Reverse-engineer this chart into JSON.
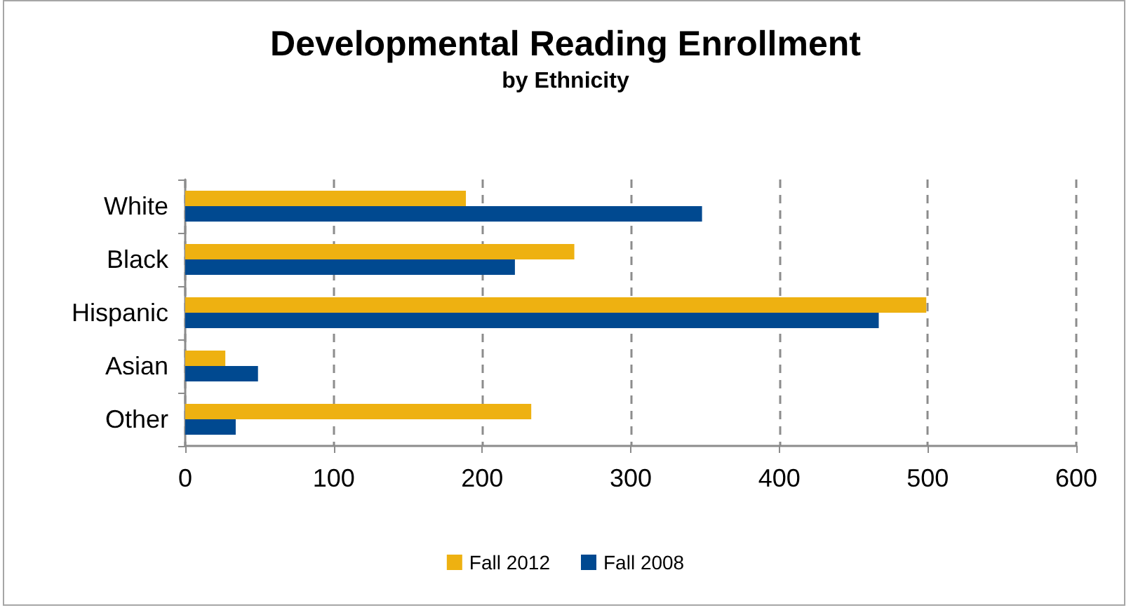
{
  "chart_data": {
    "type": "bar",
    "orientation": "horizontal",
    "title": "Developmental Reading Enrollment",
    "subtitle": "by Ethnicity",
    "categories": [
      "White",
      "Black",
      "Hispanic",
      "Asian",
      "Other"
    ],
    "series": [
      {
        "name": "Fall 2012",
        "color": "#eeb111",
        "values": [
          189,
          262,
          499,
          27,
          233
        ]
      },
      {
        "name": "Fall 2008",
        "color": "#004990",
        "values": [
          348,
          222,
          467,
          49,
          34
        ]
      }
    ],
    "xlim": [
      0,
      600
    ],
    "xticks": [
      0,
      100,
      200,
      300,
      400,
      500,
      600
    ],
    "grid": "x",
    "legend": "bottom"
  }
}
